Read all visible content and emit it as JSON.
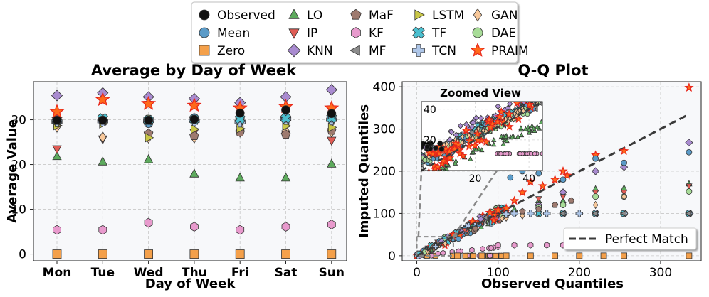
{
  "legend": {
    "entries": [
      {
        "name": "Observed",
        "marker": "circle",
        "color": "#111111"
      },
      {
        "name": "Mean",
        "marker": "circle",
        "color": "#5b9bc8"
      },
      {
        "name": "Zero",
        "marker": "square",
        "color": "#f4a04a"
      },
      {
        "name": "LO",
        "marker": "triangle-up",
        "color": "#5daa5d"
      },
      {
        "name": "IP",
        "marker": "triangle-down",
        "color": "#e05c55"
      },
      {
        "name": "KNN",
        "marker": "diamond",
        "color": "#a98bd0"
      },
      {
        "name": "MaF",
        "marker": "pentagon",
        "color": "#9e7a6f"
      },
      {
        "name": "KF",
        "marker": "hexagon",
        "color": "#e89acd"
      },
      {
        "name": "MF",
        "marker": "triangle-left",
        "color": "#8c8c8c"
      },
      {
        "name": "LSTM",
        "marker": "triangle-right",
        "color": "#c9c746"
      },
      {
        "name": "TF",
        "marker": "x",
        "color": "#4bbfcf"
      },
      {
        "name": "TCN",
        "marker": "plus",
        "color": "#aec6e8"
      },
      {
        "name": "GAN",
        "marker": "thin-diamond",
        "color": "#f8c89a"
      },
      {
        "name": "DAE",
        "marker": "circle",
        "color": "#a8dc98"
      },
      {
        "name": "PRAIM",
        "marker": "star",
        "color": "#ff6a1a"
      }
    ]
  },
  "colors": {
    "Observed": "#111111",
    "Mean": "#5b9bc8",
    "Zero": "#f4a04a",
    "LO": "#5daa5d",
    "IP": "#e05c55",
    "KNN": "#a98bd0",
    "MaF": "#9e7a6f",
    "KF": "#e89acd",
    "MF": "#8c8c8c",
    "LSTM": "#c9c746",
    "TF": "#4bbfcf",
    "TCN": "#aec6e8",
    "GAN": "#f8c89a",
    "DAE": "#a8dc98",
    "PRAIM": "#ff6a1a"
  },
  "chart_data": [
    {
      "type": "scatter",
      "title": "Average by Day of Week",
      "xlabel": "Day of Week",
      "ylabel": "Average Value",
      "categories": [
        "Mon",
        "Tue",
        "Wed",
        "Thu",
        "Fri",
        "Sat",
        "Sun"
      ],
      "ylim": [
        -1.5,
        38.5
      ],
      "yticks": [
        0,
        10,
        20,
        30
      ],
      "grid": true,
      "series": [
        {
          "name": "Observed",
          "values": [
            29.9,
            29.9,
            29.9,
            30.1,
            31.5,
            32.2,
            31.4
          ]
        },
        {
          "name": "Mean",
          "values": [
            30.1,
            30.1,
            29.2,
            30.4,
            30.4,
            30.4,
            30.4
          ]
        },
        {
          "name": "Zero",
          "values": [
            0,
            0,
            0,
            0,
            0,
            0,
            0
          ]
        },
        {
          "name": "LO",
          "values": [
            21.8,
            20.6,
            21.1,
            17.9,
            17.0,
            17.0,
            20.1
          ]
        },
        {
          "name": "IP",
          "values": [
            23.5,
            25.7,
            26.4,
            27.2,
            27.2,
            26.8,
            25.4
          ]
        },
        {
          "name": "KNN",
          "values": [
            35.4,
            36.0,
            35.1,
            34.7,
            33.8,
            35.1,
            36.7
          ]
        },
        {
          "name": "MaF",
          "values": [
            29.4,
            29.6,
            26.9,
            26.4,
            27.2,
            26.7,
            27.6
          ]
        },
        {
          "name": "KF",
          "values": [
            5.4,
            5.4,
            7.0,
            6.1,
            5.4,
            6.1,
            6.6
          ]
        },
        {
          "name": "MF",
          "values": [
            29.7,
            29.8,
            29.3,
            29.9,
            29.8,
            29.9,
            29.9
          ]
        },
        {
          "name": "LSTM",
          "values": [
            28.7,
            29.1,
            26.0,
            27.9,
            28.0,
            28.6,
            28.3
          ]
        },
        {
          "name": "TF",
          "values": [
            30.0,
            30.3,
            29.9,
            30.1,
            30.2,
            30.3,
            30.4
          ]
        },
        {
          "name": "TCN",
          "values": [
            29.6,
            29.7,
            29.8,
            29.8,
            29.5,
            30.1,
            30.0
          ]
        },
        {
          "name": "GAN",
          "values": [
            28.4,
            26.1,
            26.0,
            26.0,
            28.5,
            27.5,
            27.3
          ]
        },
        {
          "name": "DAE",
          "values": [
            30.1,
            30.1,
            30.1,
            30.4,
            30.5,
            30.4,
            30.8
          ]
        },
        {
          "name": "PRAIM",
          "values": [
            31.8,
            34.5,
            33.6,
            33.2,
            32.6,
            32.9,
            32.6
          ]
        }
      ]
    },
    {
      "type": "scatter",
      "title": "Q-Q Plot",
      "xlabel": "Observed Quantiles",
      "ylabel": "Imputed Quantiles",
      "xlim": [
        -18,
        350
      ],
      "ylim": [
        -12,
        412
      ],
      "xticks": [
        0,
        100,
        200,
        300
      ],
      "yticks": [
        0,
        100,
        200,
        300,
        400
      ],
      "grid": true,
      "reference_line": {
        "label": "Perfect Match",
        "x": [
          0,
          335
        ],
        "y": [
          0,
          335
        ]
      },
      "legend_location": "lower-right",
      "inset": {
        "title": "Zoomed View",
        "xlim": [
          0,
          45
        ],
        "ylim": [
          0,
          45
        ],
        "xticks": [
          20,
          40
        ],
        "yticks": [
          20,
          40
        ]
      },
      "series": [
        {
          "name": "PRAIM",
          "points": [
            [
              335,
              398
            ],
            [
              220,
              238
            ],
            [
              255,
              248
            ],
            [
              120,
              130
            ],
            [
              130,
              150
            ],
            [
              140,
              175
            ],
            [
              155,
              165
            ],
            [
              170,
              180
            ],
            [
              185,
              190
            ],
            [
              110,
              112
            ],
            [
              100,
              108
            ],
            [
              90,
              102
            ],
            [
              180,
              200
            ]
          ]
        },
        {
          "name": "KNN",
          "points": [
            [
              335,
              268
            ],
            [
              255,
              210
            ],
            [
              220,
              200
            ],
            [
              150,
              120
            ],
            [
              180,
              150
            ],
            [
              120,
              105
            ],
            [
              110,
              100
            ]
          ]
        },
        {
          "name": "Mean",
          "points": [
            [
              335,
              245
            ],
            [
              255,
              220
            ],
            [
              220,
              230
            ],
            [
              150,
              195
            ],
            [
              130,
              200
            ],
            [
              115,
              185
            ],
            [
              180,
              180
            ],
            [
              140,
              210
            ]
          ]
        },
        {
          "name": "LO",
          "points": [
            [
              335,
              170
            ],
            [
              255,
              160
            ],
            [
              220,
              158
            ],
            [
              150,
              130
            ],
            [
              180,
              130
            ],
            [
              120,
              110
            ],
            [
              110,
              100
            ]
          ]
        },
        {
          "name": "IP",
          "points": [
            [
              335,
              165
            ],
            [
              255,
              150
            ],
            [
              220,
              150
            ],
            [
              150,
              135
            ],
            [
              180,
              140
            ]
          ]
        },
        {
          "name": "DAE",
          "points": [
            [
              335,
              152
            ],
            [
              255,
              140
            ],
            [
              220,
              140
            ],
            [
              180,
              120
            ],
            [
              150,
              115
            ],
            [
              120,
              100
            ]
          ]
        },
        {
          "name": "GAN",
          "points": [
            [
              255,
              140
            ],
            [
              220,
              120
            ],
            [
              150,
              100
            ],
            [
              130,
              95
            ],
            [
              110,
              90
            ]
          ]
        },
        {
          "name": "TCN",
          "points": [
            [
              335,
              100
            ],
            [
              255,
              100
            ],
            [
              220,
              100
            ],
            [
              200,
              100
            ],
            [
              180,
              100
            ],
            [
              160,
              100
            ],
            [
              140,
              100
            ],
            [
              120,
              100
            ],
            [
              110,
              98
            ]
          ]
        },
        {
          "name": "TF",
          "points": [
            [
              335,
              100
            ],
            [
              255,
              100
            ],
            [
              220,
              100
            ],
            [
              180,
              100
            ],
            [
              150,
              100
            ]
          ]
        },
        {
          "name": "MF",
          "points": [
            [
              335,
              100
            ],
            [
              255,
              100
            ],
            [
              220,
              100
            ],
            [
              180,
              100
            ]
          ]
        },
        {
          "name": "MaF",
          "points": [
            [
              150,
              110
            ],
            [
              170,
              120
            ],
            [
              190,
              130
            ],
            [
              130,
              105
            ]
          ]
        },
        {
          "name": "KF",
          "points": [
            [
              100,
              25
            ],
            [
              120,
              25
            ],
            [
              140,
              25
            ],
            [
              160,
              25
            ],
            [
              180,
              25
            ],
            [
              200,
              25
            ],
            [
              220,
              25
            ]
          ]
        },
        {
          "name": "Zero",
          "points": [
            [
              50,
              0
            ],
            [
              80,
              0
            ],
            [
              110,
              0
            ],
            [
              140,
              0
            ],
            [
              170,
              0
            ],
            [
              200,
              0
            ],
            [
              230,
              0
            ],
            [
              255,
              0
            ],
            [
              335,
              0
            ]
          ]
        }
      ]
    }
  ]
}
